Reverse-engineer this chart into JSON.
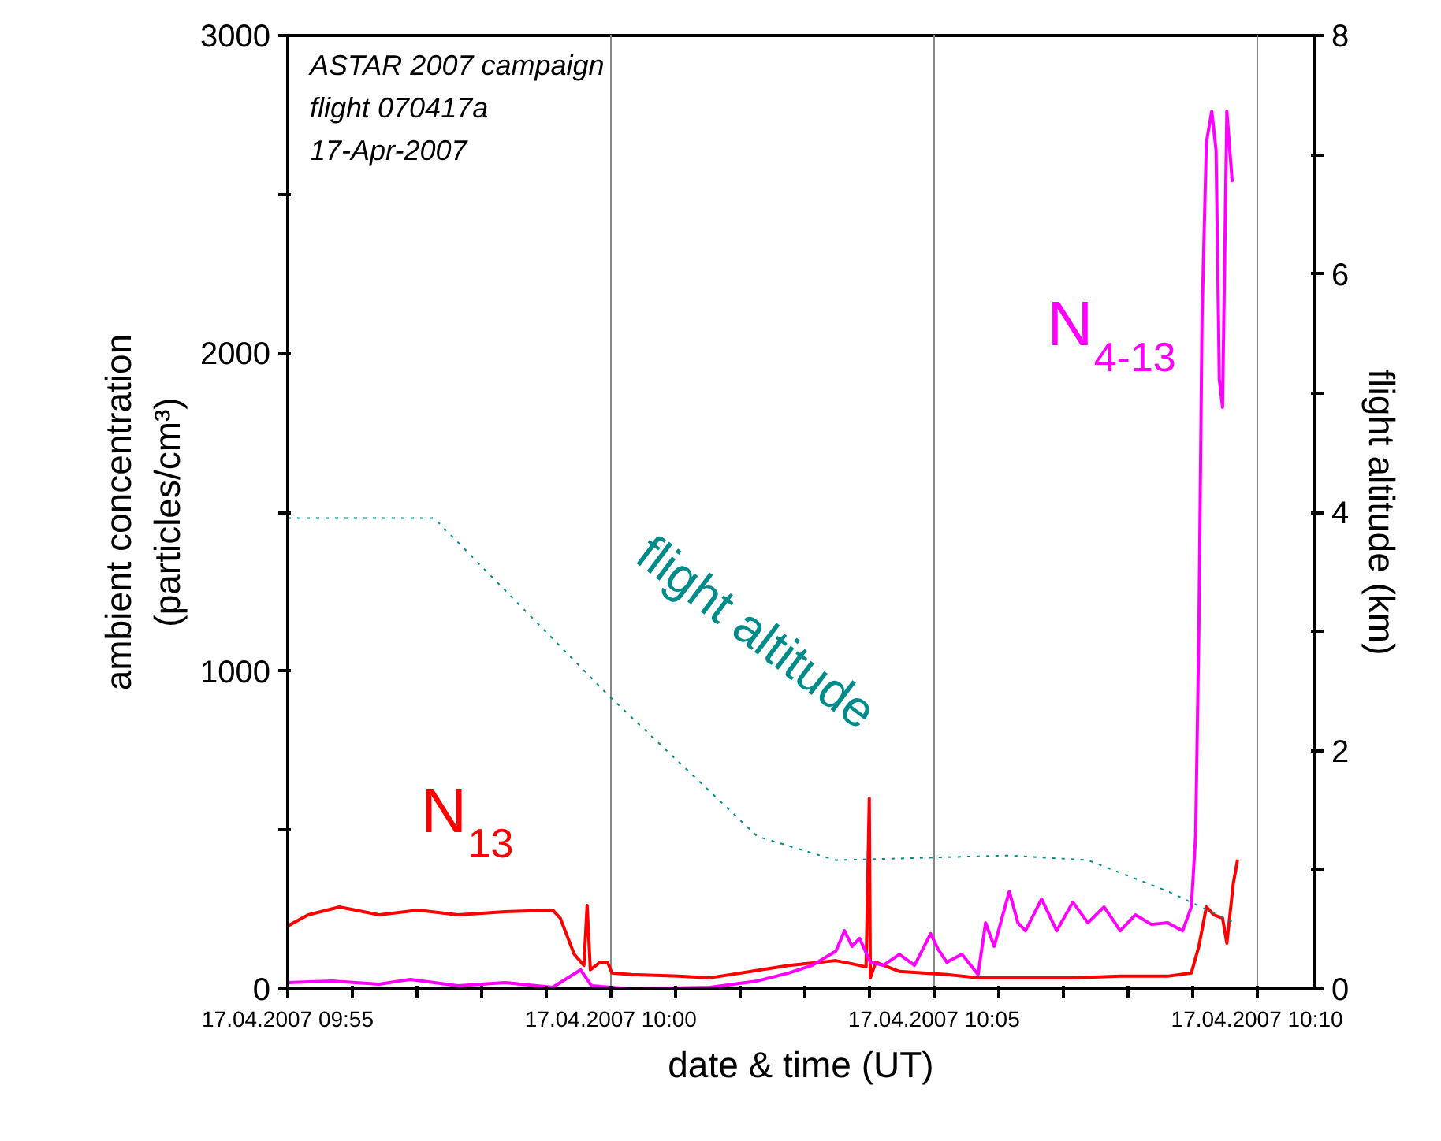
{
  "chart_data": {
    "type": "line",
    "xlabel": "date & time (UT)",
    "ylabel": "ambient concentration\n(particles/cm³)",
    "y2label": "flight altitude (km)",
    "annotations": [
      "ASTAR 2007 campaign",
      "flight 070417a",
      "17-Apr-2007"
    ],
    "xlim": [
      "2007-04-17T09:55",
      "2007-04-17T10:10:53"
    ],
    "ylim": [
      0,
      3000
    ],
    "y2lim": [
      0,
      8
    ],
    "xticks": [
      {
        "value": "2007-04-17T09:55",
        "label": "17.04.2007 09:55"
      },
      {
        "value": "2007-04-17T09:56",
        "label": null
      },
      {
        "value": "2007-04-17T09:57",
        "label": null
      },
      {
        "value": "2007-04-17T09:58",
        "label": null
      },
      {
        "value": "2007-04-17T09:59",
        "label": null
      },
      {
        "value": "2007-04-17T10:00",
        "label": "17.04.2007 10:00"
      },
      {
        "value": "2007-04-17T10:01",
        "label": null
      },
      {
        "value": "2007-04-17T10:02",
        "label": null
      },
      {
        "value": "2007-04-17T10:03",
        "label": null
      },
      {
        "value": "2007-04-17T10:04",
        "label": null
      },
      {
        "value": "2007-04-17T10:05",
        "label": "17.04.2007 10:05"
      },
      {
        "value": "2007-04-17T10:06",
        "label": null
      },
      {
        "value": "2007-04-17T10:07",
        "label": null
      },
      {
        "value": "2007-04-17T10:08",
        "label": null
      },
      {
        "value": "2007-04-17T10:09",
        "label": null
      },
      {
        "value": "2007-04-17T10:10",
        "label": "17.04.2007 10:10"
      }
    ],
    "yticks": [
      0,
      {
        "value": 500,
        "label": null
      },
      1000,
      {
        "value": 1500,
        "label": null
      },
      2000,
      {
        "value": 2500,
        "label": null
      },
      3000
    ],
    "y2ticks": [
      0,
      {
        "value": 1,
        "label": null
      },
      2,
      {
        "value": 3,
        "label": null
      },
      4,
      {
        "value": 5,
        "label": null
      },
      6,
      {
        "value": 7,
        "label": null
      },
      8
    ],
    "grid": "x",
    "marker": "none",
    "series": [
      {
        "name": "N$_{13}$",
        "color": "#ff0000",
        "line_style": "solid",
        "x": [
          "2007-04-17T09:55:00",
          "2007-04-17T09:55:19",
          "2007-04-17T09:55:48",
          "2007-04-17T09:56:25",
          "2007-04-17T09:57:01",
          "2007-04-17T09:57:38",
          "2007-04-17T09:58:22",
          "2007-04-17T09:59:06",
          "2007-04-17T09:59:13",
          "2007-04-17T09:59:26",
          "2007-04-17T09:59:35",
          "2007-04-17T09:59:38",
          "2007-04-17T09:59:41",
          "2007-04-17T09:59:50",
          "2007-04-17T09:59:57",
          "2007-04-17T10:00:01",
          "2007-04-17T10:00:19",
          "2007-04-17T10:01:03",
          "2007-04-17T10:01:32",
          "2007-04-17T10:02:01",
          "2007-04-17T10:02:45",
          "2007-04-17T10:03:15",
          "2007-04-17T10:03:29",
          "2007-04-17T10:03:44",
          "2007-04-17T10:03:57",
          "2007-04-17T10:04:00",
          "2007-04-17T10:04:01",
          "2007-04-17T10:04:06",
          "2007-04-17T10:04:28",
          "2007-04-17T10:05:12",
          "2007-04-17T10:05:41",
          "2007-04-17T10:06:25",
          "2007-04-17T10:07:09",
          "2007-04-17T10:07:53",
          "2007-04-17T10:08:37",
          "2007-04-17T10:08:59",
          "2007-04-17T10:09:06",
          "2007-04-17T10:09:13",
          "2007-04-17T10:09:20",
          "2007-04-17T10:09:28",
          "2007-04-17T10:09:32",
          "2007-04-17T10:09:38",
          "2007-04-17T10:09:42"
        ],
        "values": [
          198,
          233,
          258,
          233,
          248,
          233,
          243,
          248,
          223,
          109,
          74,
          263,
          60,
          84,
          84,
          50,
          45,
          40,
          35,
          50,
          74,
          84,
          89,
          79,
          69,
          600,
          35,
          84,
          55,
          45,
          35,
          35,
          35,
          40,
          40,
          50,
          134,
          258,
          233,
          223,
          144,
          332,
          407
        ]
      },
      {
        "name": "N$_{4-13}$",
        "color": "#ff00ff",
        "line_style": "solid",
        "x": [
          "2007-04-17T09:55:00",
          "2007-04-17T09:55:41",
          "2007-04-17T09:56:25",
          "2007-04-17T09:56:54",
          "2007-04-17T09:57:38",
          "2007-04-17T09:58:22",
          "2007-04-17T09:59:06",
          "2007-04-17T09:59:32",
          "2007-04-17T09:59:42",
          "2007-04-17T10:00:19",
          "2007-04-17T10:01:32",
          "2007-04-17T10:02:16",
          "2007-04-17T10:02:45",
          "2007-04-17T10:03:07",
          "2007-04-17T10:03:29",
          "2007-04-17T10:03:37",
          "2007-04-17T10:03:44",
          "2007-04-17T10:03:51",
          "2007-04-17T10:04:01",
          "2007-04-17T10:04:13",
          "2007-04-17T10:04:28",
          "2007-04-17T10:04:42",
          "2007-04-17T10:04:57",
          "2007-04-17T10:05:04",
          "2007-04-17T10:05:12",
          "2007-04-17T10:05:26",
          "2007-04-17T10:05:41",
          "2007-04-17T10:05:48",
          "2007-04-17T10:05:56",
          "2007-04-17T10:06:10",
          "2007-04-17T10:06:18",
          "2007-04-17T10:06:25",
          "2007-04-17T10:06:40",
          "2007-04-17T10:06:54",
          "2007-04-17T10:07:09",
          "2007-04-17T10:07:23",
          "2007-04-17T10:07:38",
          "2007-04-17T10:07:53",
          "2007-04-17T10:08:07",
          "2007-04-17T10:08:22",
          "2007-04-17T10:08:37",
          "2007-04-17T10:08:51",
          "2007-04-17T10:08:59",
          "2007-04-17T10:09:03",
          "2007-04-17T10:09:06",
          "2007-04-17T10:09:09",
          "2007-04-17T10:09:13",
          "2007-04-17T10:09:18",
          "2007-04-17T10:09:22",
          "2007-04-17T10:09:25",
          "2007-04-17T10:09:28",
          "2007-04-17T10:09:32",
          "2007-04-17T10:09:37"
        ],
        "values": [
          20,
          25,
          15,
          30,
          10,
          20,
          5,
          60,
          10,
          0,
          5,
          25,
          50,
          74,
          119,
          183,
          134,
          159,
          84,
          74,
          109,
          74,
          174,
          124,
          84,
          109,
          45,
          208,
          134,
          307,
          208,
          183,
          283,
          183,
          273,
          208,
          258,
          183,
          233,
          203,
          208,
          183,
          258,
          481,
          1126,
          2118,
          2663,
          2762,
          2638,
          1919,
          1830,
          2762,
          2539
        ]
      },
      {
        "name": "flight altitude",
        "color": "#008b8b",
        "line_style": "dotted",
        "axis": "y2",
        "x": [
          "2007-04-17T09:55:00",
          "2007-04-17T09:57:16",
          "2007-04-17T09:59:57",
          "2007-04-17T10:02:16",
          "2007-04-17T10:03:29",
          "2007-04-17T10:06:10",
          "2007-04-17T10:07:23",
          "2007-04-17T10:08:37",
          "2007-04-17T10:09:38"
        ],
        "values": [
          3.95,
          3.95,
          2.47,
          1.28,
          1.08,
          1.12,
          1.08,
          0.82,
          0.56
        ]
      }
    ]
  }
}
